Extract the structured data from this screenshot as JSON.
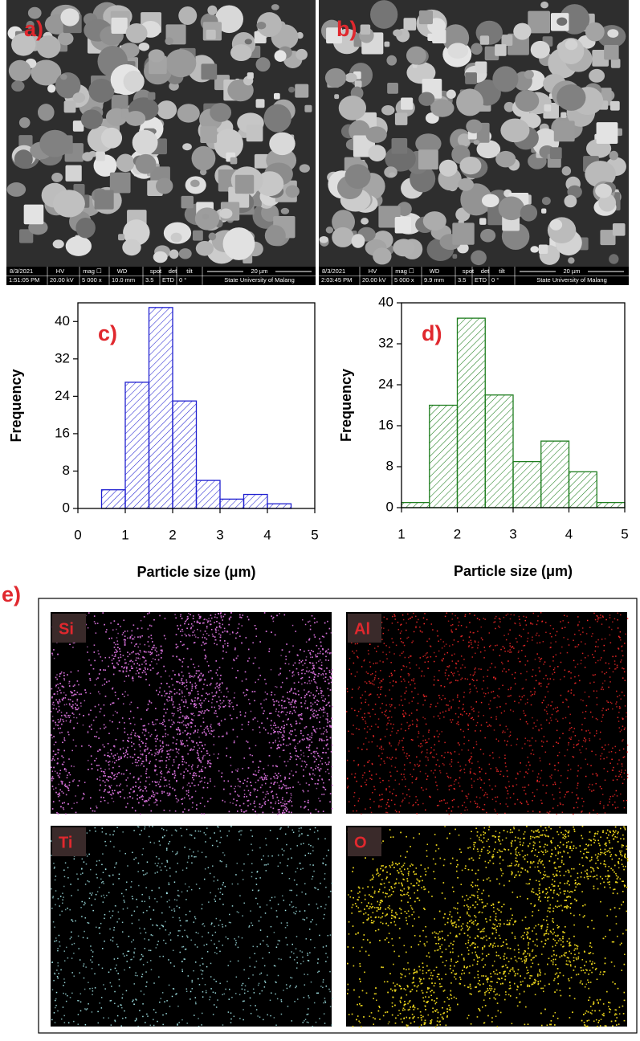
{
  "sem_headers": [
    "HV",
    "mag ☐",
    "WD",
    "spot",
    "det",
    "tilt"
  ],
  "sem": [
    {
      "label": "a)",
      "date": "8/3/2021",
      "time": "1:51:05 PM",
      "hv": "20.00 kV",
      "mag": "5 000 x",
      "wd": "10.0 mm",
      "spot": "3.5",
      "det": "ETD",
      "tilt": "0 °",
      "scale": "20 µm",
      "institution": "State University of Malang"
    },
    {
      "label": "b)",
      "date": "8/3/2021",
      "time": "2:03:45 PM",
      "hv": "20.00 kV",
      "mag": "5 000 x",
      "wd": "9.9 mm",
      "spot": "3.5",
      "det": "ETD",
      "tilt": "0 °",
      "scale": "20 µm",
      "institution": "State University of Malang"
    }
  ],
  "chart_data": [
    {
      "type": "histogram",
      "label": "c)",
      "bins": [
        0.5,
        1,
        1.5,
        2,
        2.5,
        3,
        3.5,
        4,
        4.5
      ],
      "values": [
        4,
        27,
        43,
        23,
        6,
        2,
        3,
        1
      ],
      "color": "#1f1fd0",
      "hatch": true,
      "xlim": [
        0,
        5
      ],
      "xticks": [
        0,
        1,
        2,
        3,
        4,
        5
      ],
      "ylim": [
        0,
        44
      ],
      "yticks": [
        0,
        8,
        16,
        24,
        32,
        40
      ],
      "xlabel": "Particle size (μm)",
      "ylabel": "Frequency"
    },
    {
      "type": "histogram",
      "label": "d)",
      "bins": [
        1,
        1.5,
        2,
        2.5,
        3,
        3.5,
        4,
        4.5,
        5
      ],
      "values": [
        1,
        20,
        37,
        22,
        9,
        13,
        7,
        1
      ],
      "color": "#1e7d1e",
      "hatch": true,
      "xlim": [
        1,
        5
      ],
      "xticks": [
        1,
        2,
        3,
        4,
        5
      ],
      "ylim": [
        0,
        40
      ],
      "yticks": [
        0,
        8,
        16,
        24,
        32,
        40
      ],
      "xlabel": "Particle size (μm)",
      "ylabel": "Frequency"
    }
  ],
  "e_label": "e)",
  "eds_maps": [
    "Si",
    "Al",
    "Ti",
    "O"
  ]
}
